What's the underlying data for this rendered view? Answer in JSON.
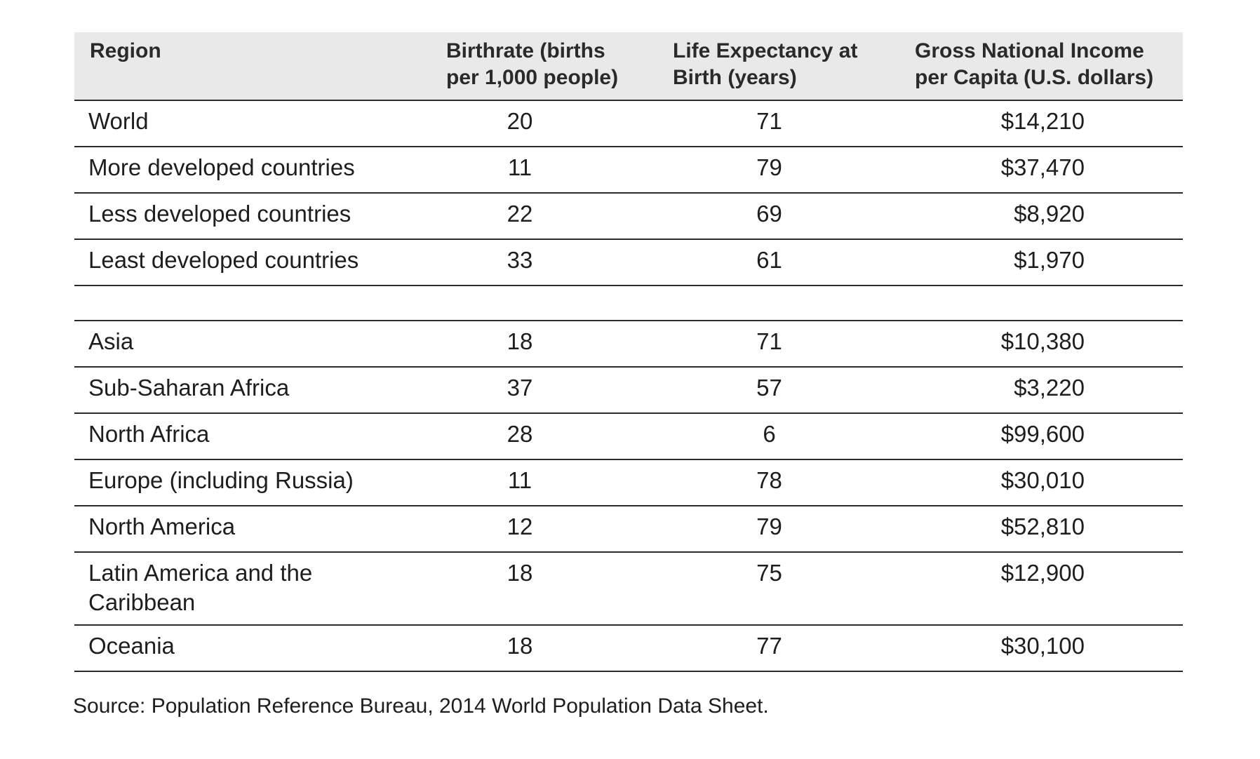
{
  "table": {
    "headers": {
      "region": "Region",
      "birthrate_line1": "Birthrate (births",
      "birthrate_line2": "per 1,000 people)",
      "life_line1": "Life Expectancy at",
      "life_line2": "Birth (years)",
      "gni_line1": "Gross National Income",
      "gni_line2": "per Capita (U.S. dollars)"
    },
    "group1": [
      {
        "region": "World",
        "birthrate": "20",
        "life_expectancy": "71",
        "gni": "$14,210"
      },
      {
        "region": "More developed countries",
        "birthrate": "11",
        "life_expectancy": "79",
        "gni": "$37,470"
      },
      {
        "region": "Less developed countries",
        "birthrate": "22",
        "life_expectancy": "69",
        "gni": "$8,920"
      },
      {
        "region": "Least developed countries",
        "birthrate": "33",
        "life_expectancy": "61",
        "gni": "$1,970"
      }
    ],
    "group2": [
      {
        "region": "Asia",
        "birthrate": "18",
        "life_expectancy": "71",
        "gni": "$10,380"
      },
      {
        "region": "Sub-Saharan Africa",
        "birthrate": "37",
        "life_expectancy": "57",
        "gni": "$3,220"
      },
      {
        "region": "North Africa",
        "birthrate": "28",
        "life_expectancy": "6",
        "gni": "$99,600"
      },
      {
        "region": "Europe (including Russia)",
        "birthrate": "11",
        "life_expectancy": "78",
        "gni": "$30,010"
      },
      {
        "region": "North America",
        "birthrate": "12",
        "life_expectancy": "79",
        "gni": "$52,810"
      },
      {
        "region_line1": "Latin America and the",
        "region_line2": "Caribbean",
        "birthrate": "18",
        "life_expectancy": "75",
        "gni": "$12,900"
      },
      {
        "region": "Oceania",
        "birthrate": "18",
        "life_expectancy": "77",
        "gni": "$30,100"
      }
    ]
  },
  "source": "Source: Population Reference Bureau, 2014 World Population Data Sheet."
}
